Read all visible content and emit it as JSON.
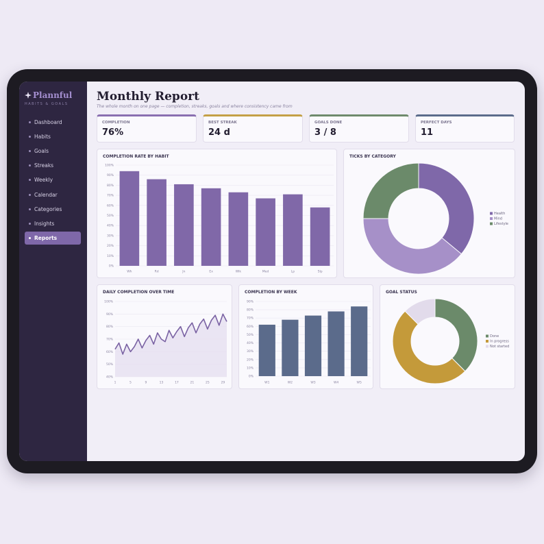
{
  "sidebar": {
    "brand": "Plannful",
    "tagline": "HABITS & GOALS",
    "nav": [
      "Dashboard",
      "Habits",
      "Goals",
      "Streaks",
      "Weekly",
      "Calendar",
      "Categories",
      "Insights",
      "Reports"
    ],
    "active": "Reports"
  },
  "header": {
    "title": "Monthly Report",
    "subtitle": "The whole month on one page — completion, streaks, goals and where consistency came from"
  },
  "kpis": [
    {
      "label": "COMPLETION",
      "value": "76%",
      "color": "#8a6fb0"
    },
    {
      "label": "BEST STREAK",
      "value": "24 d",
      "color": "#c4a046"
    },
    {
      "label": "GOALS DONE",
      "value": "3 / 8",
      "color": "#6e8a6c"
    },
    {
      "label": "PERFECT DAYS",
      "value": "11",
      "color": "#5b6b8b"
    }
  ],
  "chart_data": [
    {
      "type": "bar",
      "title": "COMPLETION RATE BY HABIT",
      "categories": [
        "Wh",
        "Rd",
        "Jn",
        "Ex",
        "Wlk",
        "Med",
        "Lp",
        "Slp"
      ],
      "values": [
        94,
        86,
        81,
        77,
        73,
        67,
        71,
        58
      ],
      "color": "#8068a8",
      "ylim": [
        0,
        100
      ],
      "yticks": [
        {
          "value": 0,
          "label": "0%"
        },
        {
          "value": 10,
          "label": "10%"
        },
        {
          "value": 20,
          "label": "20%"
        },
        {
          "value": 30,
          "label": "30%"
        },
        {
          "value": 40,
          "label": "40%"
        },
        {
          "value": 50,
          "label": "50%"
        },
        {
          "value": 60,
          "label": "60%"
        },
        {
          "value": 70,
          "label": "70%"
        },
        {
          "value": 80,
          "label": "80%"
        },
        {
          "value": 90,
          "label": "90%"
        },
        {
          "value": 100,
          "label": "100%"
        }
      ],
      "grid": true
    },
    {
      "type": "donut",
      "title": "TICKS BY CATEGORY",
      "categories": [
        "Health",
        "Mind",
        "Lifestyle"
      ],
      "values": [
        36,
        39,
        25
      ],
      "colors": [
        "#7f68a9",
        "#a690c8",
        "#6b8a6a"
      ],
      "legend": "right"
    },
    {
      "type": "line",
      "title": "DAILY COMPLETION OVER TIME",
      "x": [
        1,
        2,
        3,
        4,
        5,
        6,
        7,
        8,
        9,
        10,
        11,
        12,
        13,
        14,
        15,
        16,
        17,
        18,
        19,
        20,
        21,
        22,
        23,
        24,
        25,
        26,
        27,
        28,
        29,
        30
      ],
      "values": [
        62,
        67,
        58,
        66,
        60,
        64,
        70,
        63,
        69,
        73,
        66,
        75,
        70,
        68,
        77,
        71,
        76,
        80,
        72,
        79,
        83,
        75,
        82,
        86,
        78,
        85,
        89,
        81,
        90,
        84
      ],
      "color": "#7a62a3",
      "xlim": [
        1,
        30
      ],
      "xticks": [
        1,
        5,
        9,
        13,
        17,
        21,
        25,
        29
      ],
      "ylim": [
        40,
        100
      ],
      "yticks": [
        {
          "value": 40,
          "label": "40%"
        },
        {
          "value": 50,
          "label": "50%"
        },
        {
          "value": 60,
          "label": "60%"
        },
        {
          "value": 70,
          "label": "70%"
        },
        {
          "value": 80,
          "label": "80%"
        },
        {
          "value": 90,
          "label": "90%"
        },
        {
          "value": 100,
          "label": "100%"
        }
      ],
      "grid": true
    },
    {
      "type": "bar",
      "title": "COMPLETION BY WEEK",
      "categories": [
        "W1",
        "W2",
        "W3",
        "W4",
        "W5"
      ],
      "values": [
        62,
        68,
        73,
        78,
        84
      ],
      "color": "#5b6b8b",
      "ylim": [
        0,
        90
      ],
      "yticks": [
        {
          "value": 0,
          "label": "0%"
        },
        {
          "value": 10,
          "label": "10%"
        },
        {
          "value": 20,
          "label": "20%"
        },
        {
          "value": 30,
          "label": "30%"
        },
        {
          "value": 40,
          "label": "40%"
        },
        {
          "value": 50,
          "label": "50%"
        },
        {
          "value": 60,
          "label": "60%"
        },
        {
          "value": 70,
          "label": "70%"
        },
        {
          "value": 80,
          "label": "80%"
        },
        {
          "value": 90,
          "label": "90%"
        }
      ],
      "grid": true
    },
    {
      "type": "donut",
      "title": "GOAL STATUS",
      "categories": [
        "Done",
        "In progress",
        "Not started"
      ],
      "values": [
        3,
        4,
        1
      ],
      "colors": [
        "#6b8a6a",
        "#c49a3a",
        "#e2dbeb"
      ],
      "legend": "right"
    }
  ]
}
